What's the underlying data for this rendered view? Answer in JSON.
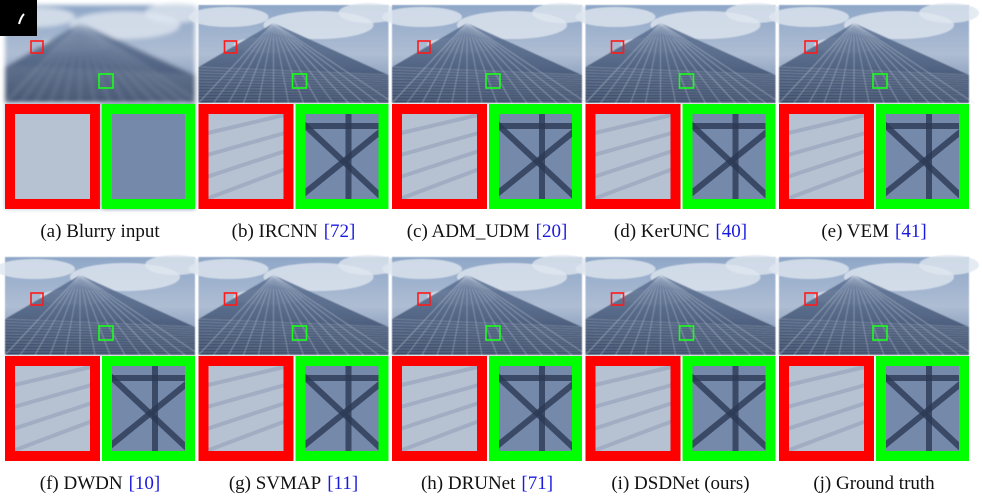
{
  "figure": {
    "panels": [
      {
        "caption": "(a) Blurry input"
      },
      {
        "caption": "(b) IRCNN",
        "ref": "[72]"
      },
      {
        "caption": "(c) ADM_UDM",
        "ref": "[20]"
      },
      {
        "caption": "(d) KerUNC",
        "ref": "[40]"
      },
      {
        "caption": "(e) VEM",
        "ref": "[41]"
      },
      {
        "caption": "(f) DWDN",
        "ref": "[10]"
      },
      {
        "caption": "(g) SVMAP",
        "ref": "[11]"
      },
      {
        "caption": "(h) DRUNet",
        "ref": "[71]"
      },
      {
        "caption": "(i) DSDNet (ours)"
      },
      {
        "caption": "(j) Ground truth"
      }
    ]
  }
}
